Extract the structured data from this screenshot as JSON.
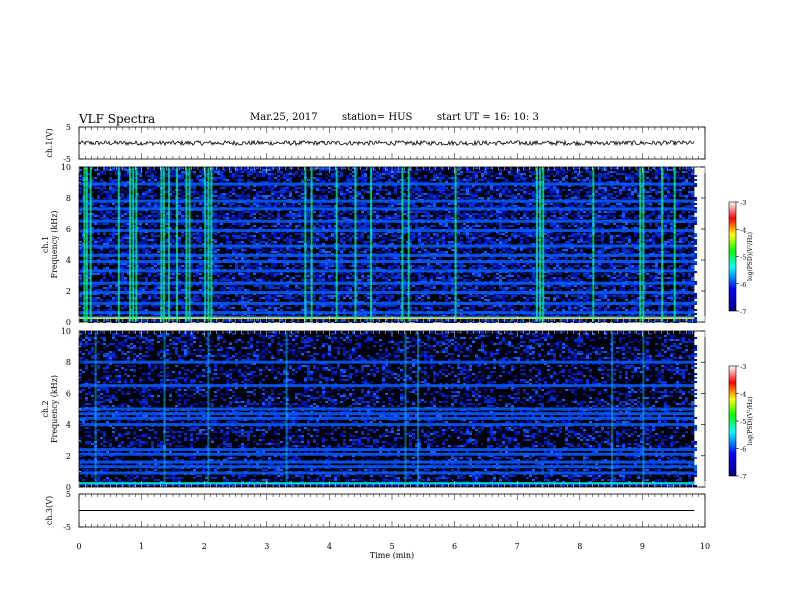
{
  "header": {
    "title": "VLF Spectra",
    "date": "Mar.25, 2017",
    "station": "station= HUS",
    "start": "start  UT =   16: 10: 3"
  },
  "colors": {
    "background": "#000000",
    "trace": "#000000"
  },
  "chart_data": [
    {
      "type": "line",
      "panel": "ch1-waveform",
      "ylabel": "ch.1(V)",
      "ylim": [
        -5,
        5
      ],
      "yticks": [
        5,
        -5
      ],
      "xlim": [
        0,
        10
      ],
      "x_extent": [
        0,
        9.83
      ],
      "trace_center": 0,
      "trace_amplitude": 0.7
    },
    {
      "type": "heatmap",
      "panel": "ch1-spectrogram",
      "ylabel": [
        "ch.1",
        "Frequency (kHz)"
      ],
      "ylim": [
        0,
        10
      ],
      "yticks": [
        0,
        2,
        4,
        6,
        8,
        10
      ],
      "xlim": [
        0,
        10
      ],
      "x_extent": [
        0,
        9.83
      ],
      "colorbar": {
        "label": "log(PSD)(V²/Hz)",
        "range": [
          -7,
          -3
        ],
        "ticks": [
          -3,
          -4,
          -5,
          -6,
          -7
        ]
      },
      "bands_khz": [
        0.3,
        0.6,
        1.2,
        1.9,
        2.5,
        3.3,
        3.9,
        4.3,
        4.9,
        5.9,
        6.5,
        7.3,
        7.8,
        8.9
      ],
      "bursts_min": [
        0.07,
        0.11,
        0.17,
        0.62,
        0.8,
        0.85,
        0.9,
        1.3,
        1.34,
        1.42,
        1.55,
        1.7,
        1.75,
        2.0,
        2.05,
        2.1,
        3.6,
        3.7,
        4.1,
        4.4,
        4.65,
        5.15,
        5.25,
        6.0,
        7.3,
        7.35,
        7.4,
        8.2,
        8.95,
        9.0,
        9.3,
        9.5
      ]
    },
    {
      "type": "heatmap",
      "panel": "ch2-spectrogram",
      "ylabel": [
        "ch.2",
        "Frequency (kHz)"
      ],
      "ylim": [
        0,
        10
      ],
      "yticks": [
        0,
        2,
        4,
        6,
        8,
        10
      ],
      "xlim": [
        0,
        10
      ],
      "x_extent": [
        0,
        9.83
      ],
      "colorbar": {
        "label": "log(PSD)(V²/Hz)",
        "range": [
          -7,
          -3
        ],
        "ticks": [
          -3,
          -4,
          -5,
          -6,
          -7
        ]
      },
      "bands_khz": [
        0.2,
        0.9,
        1.3,
        1.6,
        2.1,
        2.4,
        4.0,
        4.4,
        4.7,
        5.0,
        6.5,
        8.0
      ],
      "bursts_min": [
        0.25,
        1.35,
        2.05,
        3.3,
        5.2,
        5.4,
        8.5,
        9.0
      ]
    },
    {
      "type": "line",
      "panel": "ch3-waveform",
      "ylabel": "ch.3(V)",
      "ylim": [
        -5,
        5
      ],
      "yticks": [
        5,
        -5
      ],
      "xlim": [
        0,
        10
      ],
      "x_extent": [
        0,
        9.83
      ],
      "trace_center": 0,
      "trace_amplitude": 0,
      "xlabel": "Time (min)",
      "xticks": [
        0,
        1,
        2,
        3,
        4,
        5,
        6,
        7,
        8,
        9,
        10
      ]
    }
  ]
}
